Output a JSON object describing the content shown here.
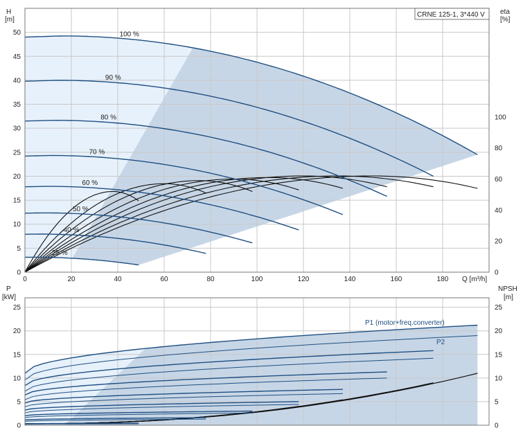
{
  "chart_data": [
    {
      "type": "line",
      "panel": "upper",
      "title_box": "CRNE 125-1, 3*440 V",
      "xlabel": "Q [m³/h]",
      "ylabel_left": [
        "H",
        "[m]"
      ],
      "ylabel_right": [
        "eta",
        "[%]"
      ],
      "xlim": [
        0,
        200
      ],
      "ylim_left": [
        0,
        55
      ],
      "ylim_right": [
        0,
        170
      ],
      "x_ticks": [
        "0",
        "20",
        "40",
        "60",
        "80",
        "100",
        "120",
        "140",
        "160",
        "180"
      ],
      "y_ticks_left": [
        "0",
        "5",
        "10",
        "15",
        "20",
        "25",
        "30",
        "35",
        "40",
        "45",
        "50"
      ],
      "y_ticks_right": [
        "0",
        "20",
        "40",
        "60",
        "80",
        "100"
      ],
      "grid": true,
      "colors": {
        "curve": "#1f4f82",
        "eta": "#111111",
        "area_light": "#e7f1fb",
        "area_dark": "#c7d6e6",
        "grid": "#c8c8c8"
      },
      "head_curves": [
        {
          "name": "100 %",
          "shutoff": 49.0,
          "qmax": 195,
          "end": 24.5
        },
        {
          "name": "90 %",
          "shutoff": 39.8,
          "qmax": 176,
          "end": 20.0
        },
        {
          "name": "80 %",
          "shutoff": 31.5,
          "qmax": 156,
          "end": 15.8
        },
        {
          "name": "70 %",
          "shutoff": 24.2,
          "qmax": 137,
          "end": 12.0
        },
        {
          "name": "60 %",
          "shutoff": 17.8,
          "qmax": 118,
          "end": 8.8
        },
        {
          "name": "50 %",
          "shutoff": 12.3,
          "qmax": 98,
          "end": 6.1
        },
        {
          "name": "40 %",
          "shutoff": 7.9,
          "qmax": 78,
          "end": 3.9
        },
        {
          "name": "25 %",
          "shutoff": 3.1,
          "qmax": 49,
          "end": 1.5
        }
      ],
      "eta_curves_percent_scale": [
        {
          "qmax": 195,
          "peak": 62,
          "qpeak": 150,
          "end": 54
        },
        {
          "qmax": 176,
          "peak": 62,
          "qpeak": 135,
          "end": 55
        },
        {
          "qmax": 156,
          "peak": 62,
          "qpeak": 120,
          "end": 55
        },
        {
          "qmax": 137,
          "peak": 61,
          "qpeak": 105,
          "end": 54
        },
        {
          "qmax": 118,
          "peak": 60,
          "qpeak": 90,
          "end": 53
        },
        {
          "qmax": 98,
          "peak": 59,
          "qpeak": 75,
          "end": 52
        },
        {
          "qmax": 78,
          "peak": 57,
          "qpeak": 60,
          "end": 51
        },
        {
          "qmax": 49,
          "peak": 52,
          "qpeak": 38,
          "end": 46
        }
      ]
    },
    {
      "type": "line",
      "panel": "lower",
      "ylabel_left": [
        "P",
        "[kW]"
      ],
      "ylabel_right": [
        "NPSH",
        "[m]"
      ],
      "xlim": [
        0,
        200
      ],
      "ylim_left": [
        0,
        27
      ],
      "ylim_right": [
        0,
        27
      ],
      "y_ticks_left": [
        "0",
        "5",
        "10",
        "15",
        "20",
        "25"
      ],
      "y_ticks_right": [
        "0",
        "5",
        "10",
        "15",
        "20",
        "25"
      ],
      "grid": true,
      "series_labels": {
        "p1": "P1 (motor+freq.converter)",
        "p2": "P2"
      },
      "p1_curves": [
        {
          "qmax": 195,
          "start": 11.0,
          "end": 21.2
        },
        {
          "qmax": 176,
          "start": 8.4,
          "end": 15.8
        },
        {
          "qmax": 156,
          "start": 6.4,
          "end": 11.3
        },
        {
          "qmax": 137,
          "start": 4.7,
          "end": 7.6
        },
        {
          "qmax": 118,
          "start": 3.2,
          "end": 5.0
        },
        {
          "qmax": 98,
          "start": 2.0,
          "end": 3.0
        },
        {
          "qmax": 78,
          "start": 1.1,
          "end": 1.6
        },
        {
          "qmax": 49,
          "start": 0.3,
          "end": 0.4
        }
      ],
      "p2_curves": [
        {
          "qmax": 195,
          "start": 9.6,
          "end": 19.0
        },
        {
          "qmax": 176,
          "start": 7.2,
          "end": 14.2
        },
        {
          "qmax": 156,
          "start": 5.4,
          "end": 10.0
        },
        {
          "qmax": 137,
          "start": 3.9,
          "end": 6.7
        },
        {
          "qmax": 118,
          "start": 2.6,
          "end": 4.4
        },
        {
          "qmax": 98,
          "start": 1.6,
          "end": 2.6
        },
        {
          "qmax": 78,
          "start": 0.8,
          "end": 1.3
        },
        {
          "qmax": 49,
          "start": 0.2,
          "end": 0.3
        }
      ],
      "npsh_curves": [
        {
          "qmax": 195,
          "end": 11.0
        },
        {
          "qmax": 176,
          "end": 9.0
        },
        {
          "qmax": 156,
          "end": 7.0
        },
        {
          "qmax": 137,
          "end": 5.4
        },
        {
          "qmax": 118,
          "end": 4.0
        },
        {
          "qmax": 98,
          "end": 2.8
        },
        {
          "qmax": 78,
          "end": 1.8
        },
        {
          "qmax": 49,
          "end": 0.8
        }
      ]
    }
  ]
}
